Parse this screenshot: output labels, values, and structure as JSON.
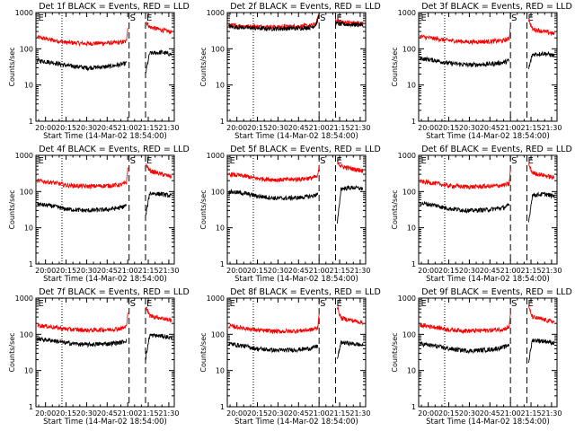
{
  "chart_data": [
    {
      "type": "line",
      "title": "Det 1f BLACK = Events, RED = LLD",
      "xlabel": "Start Time (14-Mar-02 18:54:00)",
      "ylabel": "Counts/sec",
      "yscale": "log",
      "ylim": [
        1,
        1000
      ],
      "y_ticks": [
        "1",
        "10",
        "100",
        "1000"
      ],
      "x_ticks": [
        "20:00",
        "20:15",
        "20:30",
        "20:45",
        "21:00",
        "21:15",
        "21:30"
      ],
      "x_minutes": [
        0,
        15,
        30,
        45,
        60,
        75,
        90
      ],
      "xlim_minutes": [
        -7,
        94
      ],
      "dotted_line_minute": 12,
      "markers": [
        {
          "label": "E",
          "minute": -6
        },
        {
          "label": "S",
          "minute": 61
        },
        {
          "label": "E",
          "minute": 73
        }
      ],
      "gap_minutes": [
        60,
        72
      ],
      "series": [
        {
          "color": "#ff0000",
          "x": [
            -6,
            5,
            15,
            30,
            45,
            55,
            59,
            61,
            68,
            70,
            72,
            73,
            76,
            85,
            92
          ],
          "y": [
            210,
            175,
            150,
            140,
            145,
            150,
            160,
            1000,
            1000,
            800,
            null,
            600,
            400,
            330,
            290
          ]
        },
        {
          "color": "#000000",
          "x": [
            -6,
            5,
            15,
            30,
            45,
            55,
            59,
            61,
            68,
            70,
            72,
            73,
            76,
            85,
            92
          ],
          "y": [
            48,
            42,
            35,
            30,
            32,
            37,
            40,
            null,
            null,
            null,
            null,
            20,
            75,
            80,
            70
          ]
        }
      ]
    },
    {
      "type": "line",
      "title": "Det 2f BLACK = Events, RED = LLD",
      "xlabel": "Start Time (14-Mar-02 18:54:00)",
      "ylabel": "Counts/sec",
      "yscale": "log",
      "ylim": [
        1,
        1000
      ],
      "y_ticks": [
        "1",
        "10",
        "100",
        "1000"
      ],
      "x_ticks": [
        "20:00",
        "20:15",
        "20:30",
        "20:45",
        "21:00",
        "21:15",
        "21:30"
      ],
      "x_minutes": [
        0,
        15,
        30,
        45,
        60,
        75,
        90
      ],
      "xlim_minutes": [
        -7,
        94
      ],
      "dotted_line_minute": 12,
      "markers": [
        {
          "label": "S",
          "minute": 60
        },
        {
          "label": "E",
          "minute": 72
        }
      ],
      "gap_minutes": [
        60,
        72
      ],
      "series": [
        {
          "color": "#ff0000",
          "x": [
            -6,
            5,
            15,
            30,
            45,
            55,
            58,
            60,
            64,
            68,
            71,
            73,
            76,
            85,
            92
          ],
          "y": [
            450,
            420,
            410,
            400,
            420,
            440,
            520,
            900,
            1000,
            1000,
            700,
            600,
            550,
            520,
            500
          ]
        },
        {
          "color": "#000000",
          "x": [
            -6,
            5,
            15,
            30,
            45,
            55,
            58,
            60,
            64,
            68,
            71,
            73,
            76,
            85,
            92
          ],
          "y": [
            410,
            390,
            370,
            360,
            370,
            400,
            480,
            850,
            1000,
            1000,
            650,
            500,
            480,
            470,
            460
          ]
        }
      ]
    },
    {
      "type": "line",
      "title": "Det 3f BLACK = Events, RED = LLD",
      "xlabel": "Start Time (14-Mar-02 18:54:00)",
      "ylabel": "Counts/sec",
      "yscale": "log",
      "ylim": [
        1,
        1000
      ],
      "y_ticks": [
        "1",
        "10",
        "100",
        "1000"
      ],
      "x_ticks": [
        "20:00",
        "20:15",
        "20:30",
        "20:45",
        "21:00",
        "21:15",
        "21:30"
      ],
      "x_minutes": [
        0,
        15,
        30,
        45,
        60,
        75,
        90
      ],
      "xlim_minutes": [
        -7,
        94
      ],
      "dotted_line_minute": 12,
      "markers": [
        {
          "label": "E",
          "minute": -6
        },
        {
          "label": "S",
          "minute": 60
        },
        {
          "label": "E",
          "minute": 72
        }
      ],
      "gap_minutes": [
        60,
        72
      ],
      "series": [
        {
          "color": "#ff0000",
          "x": [
            -6,
            5,
            15,
            30,
            45,
            55,
            59,
            61,
            68,
            70,
            72,
            73,
            76,
            85,
            92
          ],
          "y": [
            220,
            190,
            170,
            155,
            160,
            170,
            190,
            1000,
            1000,
            800,
            null,
            700,
            350,
            300,
            260
          ]
        },
        {
          "color": "#000000",
          "x": [
            -6,
            5,
            15,
            30,
            45,
            55,
            59,
            61,
            68,
            70,
            72,
            73,
            76,
            85,
            92
          ],
          "y": [
            55,
            48,
            40,
            36,
            38,
            42,
            48,
            null,
            null,
            null,
            null,
            25,
            70,
            75,
            65
          ]
        }
      ]
    },
    {
      "type": "line",
      "title": "Det 4f BLACK = Events, RED = LLD",
      "xlabel": "Start Time (14-Mar-02 18:54:00)",
      "ylabel": "Counts/sec",
      "yscale": "log",
      "ylim": [
        1,
        1000
      ],
      "y_ticks": [
        "1",
        "10",
        "100",
        "1000"
      ],
      "x_ticks": [
        "20:00",
        "20:15",
        "20:30",
        "20:45",
        "21:00",
        "21:15",
        "21:30"
      ],
      "x_minutes": [
        0,
        15,
        30,
        45,
        60,
        75,
        90
      ],
      "xlim_minutes": [
        -7,
        94
      ],
      "dotted_line_minute": 12,
      "markers": [
        {
          "label": "E",
          "minute": -6
        },
        {
          "label": "S",
          "minute": 61
        },
        {
          "label": "E",
          "minute": 73
        }
      ],
      "gap_minutes": [
        60,
        72
      ],
      "series": [
        {
          "color": "#ff0000",
          "x": [
            -6,
            5,
            15,
            30,
            45,
            55,
            59,
            61,
            68,
            70,
            72,
            73,
            76,
            85,
            92
          ],
          "y": [
            200,
            180,
            150,
            140,
            145,
            155,
            170,
            1000,
            1000,
            800,
            null,
            600,
            380,
            300,
            260
          ]
        },
        {
          "color": "#000000",
          "x": [
            -6,
            5,
            15,
            30,
            45,
            55,
            59,
            61,
            68,
            70,
            72,
            73,
            76,
            85,
            92
          ],
          "y": [
            45,
            40,
            33,
            30,
            32,
            36,
            42,
            null,
            null,
            null,
            null,
            20,
            90,
            85,
            75
          ]
        }
      ]
    },
    {
      "type": "line",
      "title": "Det 5f BLACK = Events, RED = LLD",
      "xlabel": "Start Time (14-Mar-02 18:54:00)",
      "ylabel": "Counts/sec",
      "yscale": "log",
      "ylim": [
        1,
        1000
      ],
      "y_ticks": [
        "1",
        "10",
        "100",
        "1000"
      ],
      "x_ticks": [
        "20:00",
        "20:15",
        "20:30",
        "20:45",
        "21:00",
        "21:15",
        "21:30"
      ],
      "x_minutes": [
        0,
        15,
        30,
        45,
        60,
        75,
        90
      ],
      "xlim_minutes": [
        -7,
        94
      ],
      "dotted_line_minute": 12,
      "markers": [
        {
          "label": "E",
          "minute": -6
        },
        {
          "label": "S",
          "minute": 60
        },
        {
          "label": "E",
          "minute": 72
        }
      ],
      "gap_minutes": [
        60,
        72
      ],
      "series": [
        {
          "color": "#ff0000",
          "x": [
            -6,
            5,
            15,
            30,
            45,
            55,
            59,
            61,
            68,
            70,
            72,
            73,
            76,
            85,
            92
          ],
          "y": [
            300,
            270,
            230,
            210,
            220,
            240,
            260,
            1000,
            1000,
            900,
            null,
            700,
            500,
            420,
            380
          ]
        },
        {
          "color": "#000000",
          "x": [
            -6,
            5,
            15,
            30,
            45,
            55,
            59,
            61,
            68,
            70,
            72,
            73,
            76,
            85,
            92
          ],
          "y": [
            100,
            90,
            75,
            65,
            68,
            75,
            85,
            null,
            null,
            null,
            null,
            10,
            120,
            130,
            120
          ]
        }
      ]
    },
    {
      "type": "line",
      "title": "Det 6f BLACK = Events, RED = LLD",
      "xlabel": "Start Time (14-Mar-02 18:54:00)",
      "ylabel": "Counts/sec",
      "yscale": "log",
      "ylim": [
        1,
        1000
      ],
      "y_ticks": [
        "1",
        "10",
        "100",
        "1000"
      ],
      "x_ticks": [
        "20:00",
        "20:15",
        "20:30",
        "20:45",
        "21:00",
        "21:15",
        "21:30"
      ],
      "x_minutes": [
        0,
        15,
        30,
        45,
        60,
        75,
        90
      ],
      "xlim_minutes": [
        -7,
        94
      ],
      "dotted_line_minute": 12,
      "markers": [
        {
          "label": "E",
          "minute": -6
        },
        {
          "label": "S",
          "minute": 60
        },
        {
          "label": "E",
          "minute": 72
        }
      ],
      "gap_minutes": [
        60,
        72
      ],
      "series": [
        {
          "color": "#ff0000",
          "x": [
            -6,
            5,
            15,
            30,
            45,
            55,
            59,
            61,
            68,
            70,
            72,
            73,
            76,
            85,
            92
          ],
          "y": [
            190,
            170,
            145,
            135,
            140,
            150,
            160,
            1000,
            1000,
            800,
            null,
            600,
            330,
            280,
            240
          ]
        },
        {
          "color": "#000000",
          "x": [
            -6,
            5,
            15,
            30,
            45,
            55,
            59,
            61,
            68,
            70,
            72,
            73,
            76,
            85,
            92
          ],
          "y": [
            48,
            42,
            34,
            30,
            32,
            36,
            42,
            null,
            null,
            null,
            null,
            12,
            80,
            85,
            75
          ]
        }
      ]
    },
    {
      "type": "line",
      "title": "Det 7f BLACK = Events, RED = LLD",
      "xlabel": "Start Time (14-Mar-02 18:54:00)",
      "ylabel": "Counts/sec",
      "yscale": "log",
      "ylim": [
        1,
        1000
      ],
      "y_ticks": [
        "1",
        "10",
        "100",
        "1000"
      ],
      "x_ticks": [
        "20:00",
        "20:15",
        "20:30",
        "20:45",
        "21:00",
        "21:15",
        "21:30"
      ],
      "x_minutes": [
        0,
        15,
        30,
        45,
        60,
        75,
        90
      ],
      "xlim_minutes": [
        -7,
        94
      ],
      "dotted_line_minute": 12,
      "markers": [
        {
          "label": "E",
          "minute": -6
        },
        {
          "label": "S",
          "minute": 61
        },
        {
          "label": "E",
          "minute": 73
        }
      ],
      "gap_minutes": [
        60,
        72
      ],
      "series": [
        {
          "color": "#ff0000",
          "x": [
            -6,
            5,
            15,
            30,
            45,
            55,
            59,
            61,
            68,
            70,
            72,
            73,
            76,
            85,
            92
          ],
          "y": [
            180,
            160,
            140,
            130,
            135,
            145,
            160,
            1000,
            1000,
            800,
            null,
            600,
            330,
            280,
            240
          ]
        },
        {
          "color": "#000000",
          "x": [
            -6,
            5,
            15,
            30,
            45,
            55,
            59,
            61,
            68,
            70,
            72,
            73,
            76,
            85,
            92
          ],
          "y": [
            75,
            68,
            58,
            52,
            55,
            60,
            68,
            null,
            null,
            null,
            null,
            20,
            95,
            90,
            80
          ]
        }
      ]
    },
    {
      "type": "line",
      "title": "Det 8f BLACK = Events, RED = LLD",
      "xlabel": "Start Time (14-Mar-02 18:54:00)",
      "ylabel": "Counts/sec",
      "yscale": "log",
      "ylim": [
        1,
        1000
      ],
      "y_ticks": [
        "1",
        "10",
        "100",
        "1000"
      ],
      "x_ticks": [
        "20:00",
        "20:15",
        "20:30",
        "20:45",
        "21:00",
        "21:15",
        "21:30"
      ],
      "x_minutes": [
        0,
        15,
        30,
        45,
        60,
        75,
        90
      ],
      "xlim_minutes": [
        -7,
        94
      ],
      "dotted_line_minute": 12,
      "markers": [
        {
          "label": "E",
          "minute": -6
        },
        {
          "label": "S",
          "minute": 60
        },
        {
          "label": "E",
          "minute": 72
        }
      ],
      "gap_minutes": [
        60,
        72
      ],
      "series": [
        {
          "color": "#ff0000",
          "x": [
            -6,
            5,
            15,
            30,
            45,
            55,
            59,
            61,
            68,
            70,
            72,
            73,
            76,
            85,
            92
          ],
          "y": [
            170,
            150,
            130,
            120,
            125,
            135,
            150,
            1000,
            1000,
            800,
            null,
            600,
            280,
            240,
            210
          ]
        },
        {
          "color": "#000000",
          "x": [
            -6,
            5,
            15,
            30,
            45,
            55,
            59,
            61,
            68,
            70,
            72,
            73,
            76,
            85,
            92
          ],
          "y": [
            55,
            48,
            40,
            36,
            38,
            42,
            48,
            null,
            null,
            null,
            null,
            18,
            60,
            55,
            50
          ]
        }
      ]
    },
    {
      "type": "line",
      "title": "Det 9f BLACK = Events, RED = LLD",
      "xlabel": "Start Time (14-Mar-02 18:54:00)",
      "ylabel": "Counts/sec",
      "yscale": "log",
      "ylim": [
        1,
        1000
      ],
      "y_ticks": [
        "1",
        "10",
        "100",
        "1000"
      ],
      "x_ticks": [
        "20:00",
        "20:15",
        "20:30",
        "20:45",
        "21:00",
        "21:15",
        "21:30"
      ],
      "x_minutes": [
        0,
        15,
        30,
        45,
        60,
        75,
        90
      ],
      "xlim_minutes": [
        -7,
        94
      ],
      "dotted_line_minute": 12,
      "markers": [
        {
          "label": "E",
          "minute": -6
        },
        {
          "label": "S",
          "minute": 60
        },
        {
          "label": "E",
          "minute": 72
        }
      ],
      "gap_minutes": [
        60,
        72
      ],
      "series": [
        {
          "color": "#ff0000",
          "x": [
            -6,
            5,
            15,
            30,
            45,
            55,
            59,
            61,
            68,
            70,
            72,
            73,
            76,
            85,
            92
          ],
          "y": [
            180,
            160,
            135,
            125,
            130,
            140,
            155,
            1000,
            1000,
            800,
            null,
            600,
            300,
            250,
            220
          ]
        },
        {
          "color": "#000000",
          "x": [
            -6,
            5,
            15,
            30,
            45,
            55,
            59,
            61,
            68,
            70,
            72,
            73,
            76,
            85,
            92
          ],
          "y": [
            55,
            48,
            40,
            35,
            38,
            44,
            52,
            null,
            null,
            null,
            null,
            15,
            70,
            65,
            58
          ]
        }
      ]
    }
  ]
}
